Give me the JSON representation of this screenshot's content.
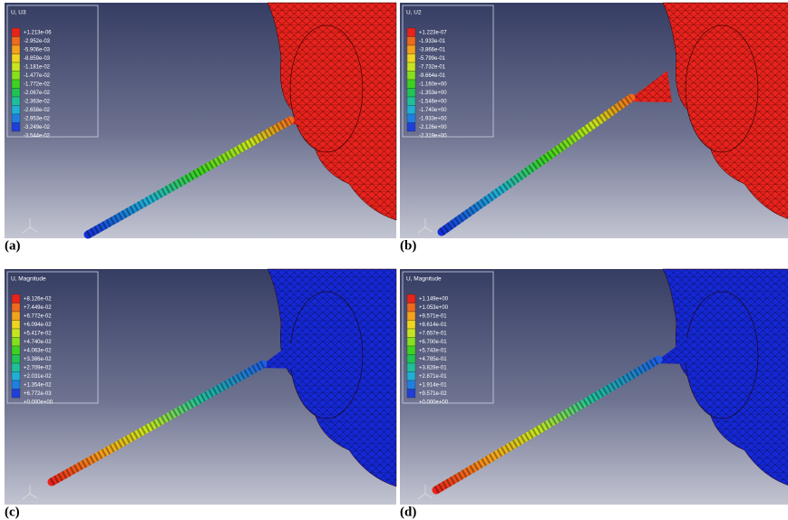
{
  "panels": [
    {
      "letter": "(a)",
      "legend_title": "U, U3",
      "legend_labels": [
        "+1.213e-06",
        "-2.952e-03",
        "-5.906e-03",
        "-8.859e-03",
        "-1.181e-02",
        "-1.477e-02",
        "-1.772e-02",
        "-2.067e-02",
        "-2.363e-02",
        "-2.658e-02",
        "-2.953e-02",
        "-3.249e-02",
        "-3.544e-02"
      ]
    },
    {
      "letter": "(b)",
      "legend_title": "U, U2",
      "legend_labels": [
        "+1.223e-07",
        "-1.933e-01",
        "-3.866e-01",
        "-5.799e-01",
        "-7.732e-01",
        "-9.664e-01",
        "-1.160e+00",
        "-1.353e+00",
        "-1.546e+00",
        "-1.740e+00",
        "-1.933e+00",
        "-2.126e+00",
        "-2.319e+00"
      ]
    },
    {
      "letter": "(c)",
      "legend_title": "U, Magnitude",
      "legend_labels": [
        "+8.126e-02",
        "+7.449e-02",
        "+6.772e-02",
        "+6.094e-02",
        "+5.417e-02",
        "+4.740e-02",
        "+4.063e-02",
        "+3.386e-02",
        "+2.709e-02",
        "+2.031e-02",
        "+1.354e-02",
        "+6.772e-03",
        "+0.000e+00"
      ]
    },
    {
      "letter": "(d)",
      "legend_title": "U, Magnitude",
      "legend_labels": [
        "+1.149e+00",
        "+1.053e+00",
        "+9.571e-01",
        "+8.614e-01",
        "+7.657e-01",
        "+6.700e-01",
        "+5.743e-01",
        "+4.785e-01",
        "+3.828e-01",
        "+2.871e-01",
        "+1.914e-01",
        "+9.571e-02",
        "+0.000e+00"
      ]
    }
  ]
}
